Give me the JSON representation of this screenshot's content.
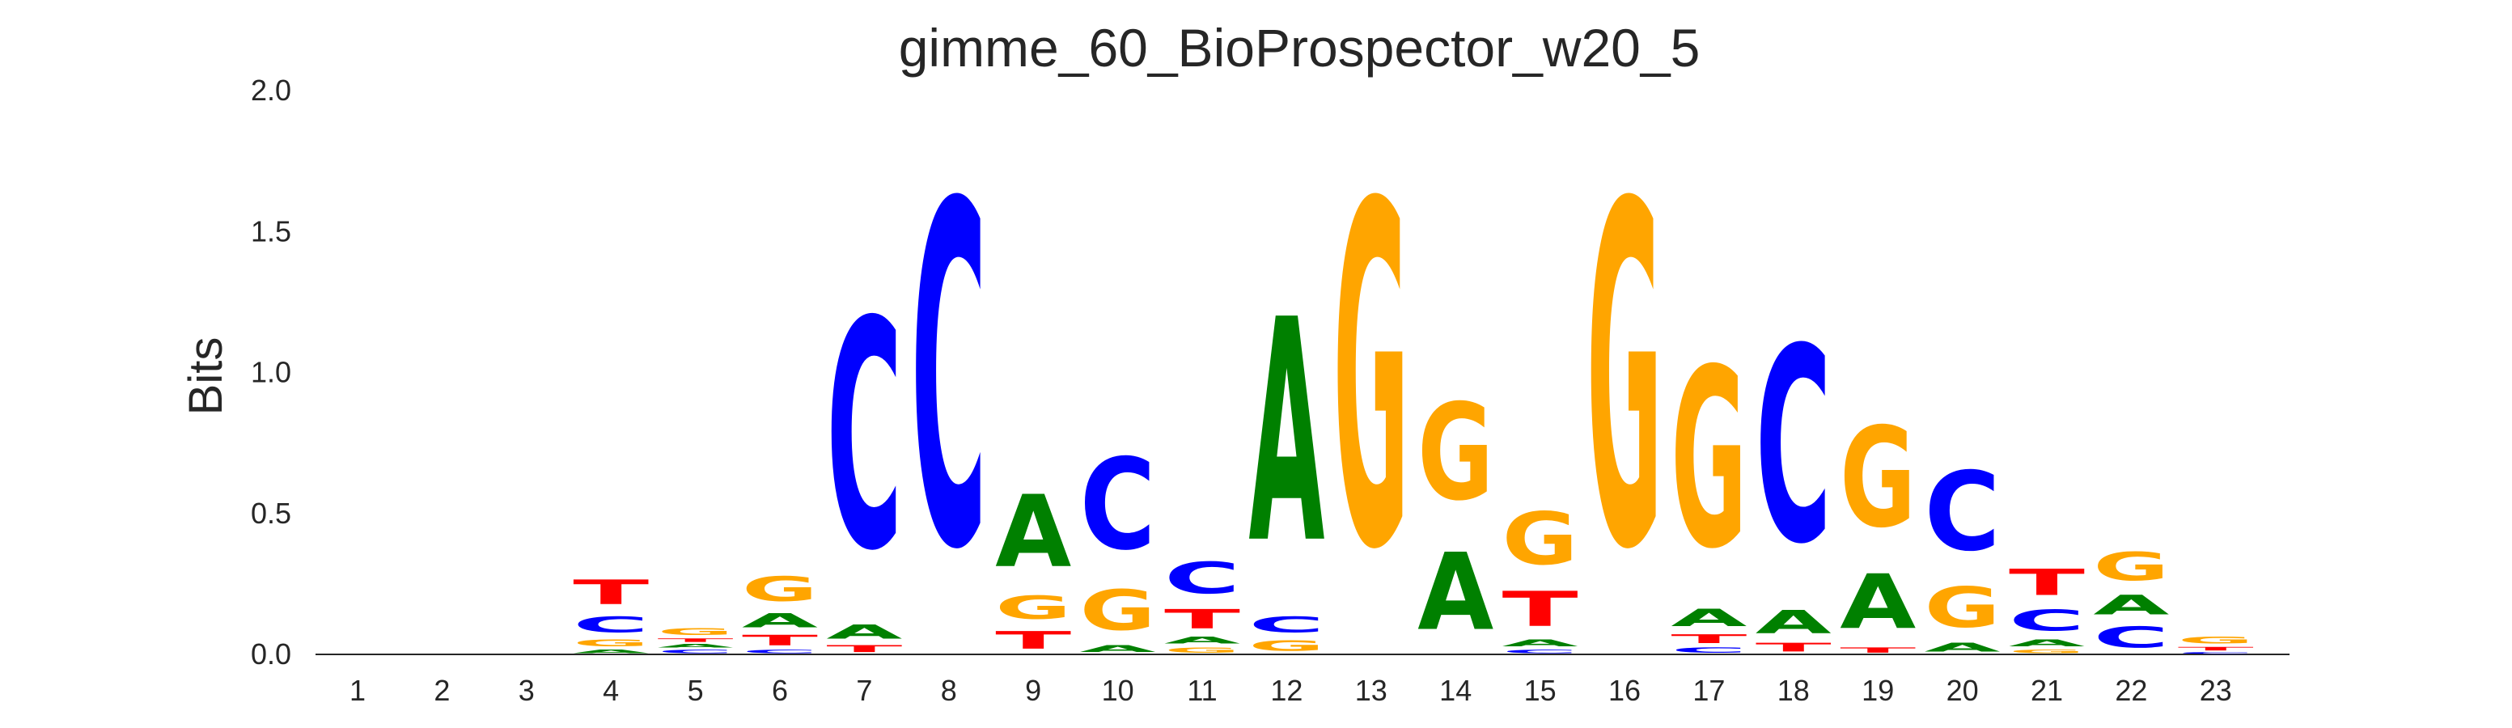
{
  "chart_data": {
    "type": "sequence-logo",
    "title": "gimme_60_BioProspector_w20_5",
    "ylabel": "Bits",
    "xlabel": "",
    "ylim": [
      0,
      2.0
    ],
    "yticks": [
      "0.0",
      "0.5",
      "1.0",
      "1.5",
      "2.0"
    ],
    "grid": false,
    "colors": {
      "A": "#008000",
      "C": "#0000ff",
      "G": "#ffa500",
      "T": "#ff0000"
    },
    "positions": [
      {
        "pos": "1",
        "stack": []
      },
      {
        "pos": "2",
        "stack": []
      },
      {
        "pos": "3",
        "stack": []
      },
      {
        "pos": "4",
        "stack": [
          {
            "base": "A",
            "bits": 0.02
          },
          {
            "base": "G",
            "bits": 0.04
          },
          {
            "base": "C",
            "bits": 0.09
          },
          {
            "base": "T",
            "bits": 0.14
          }
        ]
      },
      {
        "pos": "5",
        "stack": [
          {
            "base": "C",
            "bits": 0.02
          },
          {
            "base": "A",
            "bits": 0.02
          },
          {
            "base": "T",
            "bits": 0.02
          },
          {
            "base": "G",
            "bits": 0.04
          }
        ]
      },
      {
        "pos": "6",
        "stack": [
          {
            "base": "C",
            "bits": 0.02
          },
          {
            "base": "T",
            "bits": 0.06
          },
          {
            "base": "A",
            "bits": 0.08
          },
          {
            "base": "G",
            "bits": 0.14
          }
        ]
      },
      {
        "pos": "7",
        "stack": [
          {
            "base": "T",
            "bits": 0.04
          },
          {
            "base": "A",
            "bits": 0.08
          },
          {
            "base": "C",
            "bits": 1.3
          }
        ]
      },
      {
        "pos": "8",
        "stack": [
          {
            "base": "C",
            "bits": 1.95
          }
        ]
      },
      {
        "pos": "9",
        "stack": [
          {
            "base": "T",
            "bits": 0.1
          },
          {
            "base": "G",
            "bits": 0.13
          },
          {
            "base": "A",
            "bits": 0.41
          }
        ]
      },
      {
        "pos": "10",
        "stack": [
          {
            "base": "A",
            "bits": 0.04
          },
          {
            "base": "G",
            "bits": 0.23
          },
          {
            "base": "C",
            "bits": 0.52
          }
        ]
      },
      {
        "pos": "11",
        "stack": [
          {
            "base": "G",
            "bits": 0.03
          },
          {
            "base": "A",
            "bits": 0.04
          },
          {
            "base": "T",
            "bits": 0.11
          },
          {
            "base": "C",
            "bits": 0.18
          }
        ]
      },
      {
        "pos": "12",
        "stack": [
          {
            "base": "G",
            "bits": 0.06
          },
          {
            "base": "C",
            "bits": 0.09
          },
          {
            "base": "A",
            "bits": 1.27
          }
        ]
      },
      {
        "pos": "13",
        "stack": [
          {
            "base": "G",
            "bits": 1.95
          }
        ]
      },
      {
        "pos": "14",
        "stack": [
          {
            "base": "A",
            "bits": 0.44
          },
          {
            "base": "G",
            "bits": 0.55
          }
        ]
      },
      {
        "pos": "15",
        "stack": [
          {
            "base": "C",
            "bits": 0.02
          },
          {
            "base": "A",
            "bits": 0.04
          },
          {
            "base": "T",
            "bits": 0.2
          },
          {
            "base": "G",
            "bits": 0.3
          }
        ]
      },
      {
        "pos": "16",
        "stack": [
          {
            "base": "G",
            "bits": 1.95
          }
        ]
      },
      {
        "pos": "17",
        "stack": [
          {
            "base": "C",
            "bits": 0.03
          },
          {
            "base": "T",
            "bits": 0.05
          },
          {
            "base": "A",
            "bits": 0.1
          },
          {
            "base": "G",
            "bits": 1.02
          }
        ]
      },
      {
        "pos": "18",
        "stack": [
          {
            "base": "T",
            "bits": 0.05
          },
          {
            "base": "A",
            "bits": 0.13
          },
          {
            "base": "C",
            "bits": 1.11
          }
        ]
      },
      {
        "pos": "19",
        "stack": [
          {
            "base": "T",
            "bits": 0.03
          },
          {
            "base": "A",
            "bits": 0.31
          },
          {
            "base": "G",
            "bits": 0.57
          }
        ]
      },
      {
        "pos": "20",
        "stack": [
          {
            "base": "A",
            "bits": 0.05
          },
          {
            "base": "G",
            "bits": 0.23
          },
          {
            "base": "C",
            "bits": 0.45
          }
        ]
      },
      {
        "pos": "21",
        "stack": [
          {
            "base": "G",
            "bits": 0.02
          },
          {
            "base": "A",
            "bits": 0.04
          },
          {
            "base": "C",
            "bits": 0.12
          },
          {
            "base": "T",
            "bits": 0.15
          }
        ]
      },
      {
        "pos": "22",
        "stack": [
          {
            "base": "C",
            "bits": 0.12
          },
          {
            "base": "A",
            "bits": 0.11
          },
          {
            "base": "G",
            "bits": 0.16
          }
        ]
      },
      {
        "pos": "23",
        "stack": [
          {
            "base": "C",
            "bits": 0.01
          },
          {
            "base": "T",
            "bits": 0.02
          },
          {
            "base": "G",
            "bits": 0.04
          }
        ]
      }
    ]
  }
}
